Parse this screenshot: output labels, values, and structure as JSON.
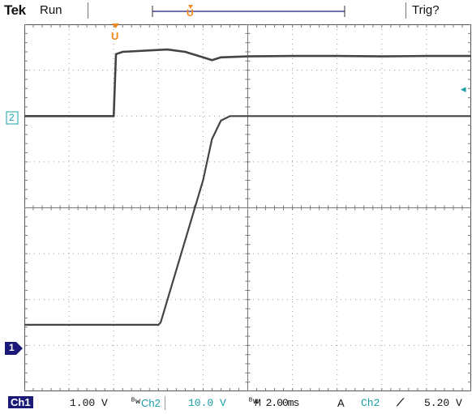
{
  "status": {
    "brand": "Tek",
    "acquisition": "Run",
    "trigger_state": "Trig?"
  },
  "markers": {
    "trigger_position_label": "U",
    "trigger_time_marker_label": "U",
    "ch2_marker_label": "2",
    "ch1_marker_label": "1",
    "trigger_level_arrow": "◂"
  },
  "colors": {
    "ch1": "#1b1a78",
    "ch2": "#1aa0a8",
    "trigger": "#f08a1c",
    "trace": "#444444",
    "grid": "#9a9a9a"
  },
  "readout": {
    "ch1_label": "Ch1",
    "ch1_scale": "1.00 V",
    "ch1_bw_symbol": "ᴮw",
    "ch2_label": "Ch2",
    "ch2_scale": "10.0 V",
    "ch2_bw_symbol": "ᴮw",
    "timebase": "M 2.00ms",
    "trigger_mode": "A",
    "trigger_source": "Ch2",
    "trigger_slope": "⟋",
    "trigger_level": "5.20 V"
  },
  "chart_data": {
    "type": "line",
    "x_divisions": 10,
    "y_divisions": 8,
    "time_per_division_ms": 2.0,
    "series": [
      {
        "name": "Ch2",
        "volts_per_division": 10.0,
        "x_div": [
          0,
          2.0,
          2.05,
          2.2,
          3.2,
          3.6,
          4.0,
          4.2,
          4.4,
          5.0,
          6.0,
          7.0,
          8.0,
          9.0,
          10.0
        ],
        "y_div": [
          2.0,
          2.0,
          3.35,
          3.4,
          3.45,
          3.4,
          3.28,
          3.22,
          3.28,
          3.3,
          3.31,
          3.31,
          3.3,
          3.31,
          3.31
        ]
      },
      {
        "name": "Ch1",
        "volts_per_division": 1.0,
        "x_div": [
          0,
          3.0,
          3.05,
          4.0,
          4.2,
          4.4,
          4.6,
          5.0,
          6.0,
          7.0,
          8.0,
          9.0,
          10.0
        ],
        "y_div": [
          -2.55,
          -2.55,
          -2.5,
          0.6,
          1.5,
          1.9,
          2.0,
          2.0,
          2.0,
          2.0,
          2.0,
          2.0,
          2.0
        ]
      }
    ]
  }
}
